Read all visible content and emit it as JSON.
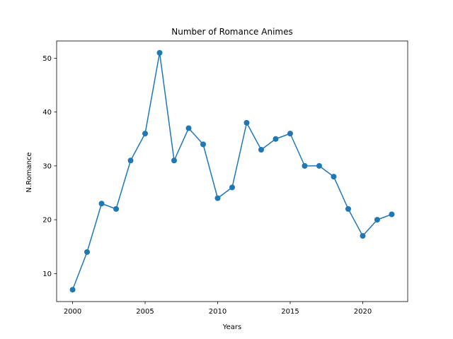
{
  "chart_data": {
    "type": "line",
    "title": "Number of Romance Animes",
    "xlabel": "Years",
    "ylabel": "N.Romance",
    "xlim": [
      1998.9,
      2023.1
    ],
    "ylim": [
      4.8,
      53.2
    ],
    "xticks": [
      2000,
      2005,
      2010,
      2015,
      2020
    ],
    "yticks": [
      10,
      20,
      30,
      40,
      50
    ],
    "grid": false,
    "legend": "none",
    "series": [
      {
        "color": "#1f77b4",
        "marker": "circle",
        "x": [
          2000,
          2001,
          2002,
          2003,
          2004,
          2005,
          2006,
          2007,
          2008,
          2009,
          2010,
          2011,
          2012,
          2013,
          2014,
          2015,
          2016,
          2017,
          2018,
          2019,
          2020,
          2021,
          2022
        ],
        "y": [
          7,
          14,
          23,
          22,
          31,
          36,
          51,
          31,
          37,
          34,
          24,
          26,
          38,
          33,
          35,
          36,
          30,
          30,
          28,
          22,
          17,
          20,
          21
        ]
      }
    ]
  }
}
